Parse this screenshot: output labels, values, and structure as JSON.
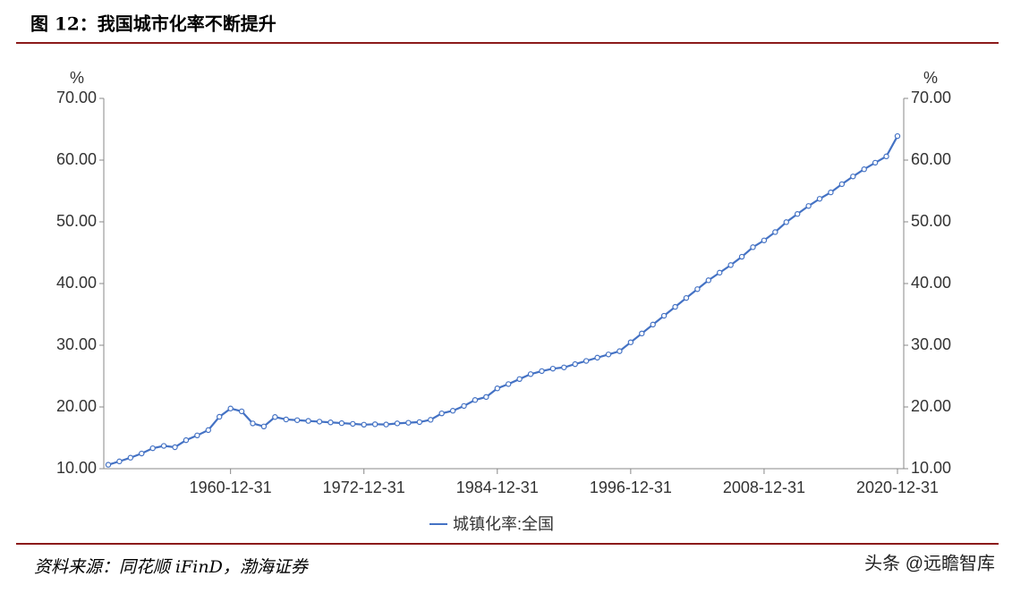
{
  "chart_data": {
    "type": "line",
    "title": "图 12：我国城市化率不断提升",
    "source": "资料来源：同花顺 iFinD，渤海证券",
    "watermark": "头条 @远瞻智库",
    "y_label": "%",
    "y2_label": "%",
    "x": [
      "1949-12-31",
      "1950-12-31",
      "1951-12-31",
      "1952-12-31",
      "1953-12-31",
      "1954-12-31",
      "1955-12-31",
      "1956-12-31",
      "1957-12-31",
      "1958-12-31",
      "1959-12-31",
      "1960-12-31",
      "1961-12-31",
      "1962-12-31",
      "1963-12-31",
      "1964-12-31",
      "1965-12-31",
      "1966-12-31",
      "1967-12-31",
      "1968-12-31",
      "1969-12-31",
      "1970-12-31",
      "1971-12-31",
      "1972-12-31",
      "1973-12-31",
      "1974-12-31",
      "1975-12-31",
      "1976-12-31",
      "1977-12-31",
      "1978-12-31",
      "1979-12-31",
      "1980-12-31",
      "1981-12-31",
      "1982-12-31",
      "1983-12-31",
      "1984-12-31",
      "1985-12-31",
      "1986-12-31",
      "1987-12-31",
      "1988-12-31",
      "1989-12-31",
      "1990-12-31",
      "1991-12-31",
      "1992-12-31",
      "1993-12-31",
      "1994-12-31",
      "1995-12-31",
      "1996-12-31",
      "1997-12-31",
      "1998-12-31",
      "1999-12-31",
      "2000-12-31",
      "2001-12-31",
      "2002-12-31",
      "2003-12-31",
      "2004-12-31",
      "2005-12-31",
      "2006-12-31",
      "2007-12-31",
      "2008-12-31",
      "2009-12-31",
      "2010-12-31",
      "2011-12-31",
      "2012-12-31",
      "2013-12-31",
      "2014-12-31",
      "2015-12-31",
      "2016-12-31",
      "2017-12-31",
      "2018-12-31",
      "2019-12-31",
      "2020-12-31"
    ],
    "series": [
      {
        "name": "城镇化率:全国",
        "color": "#4472c4",
        "values": [
          10.64,
          11.18,
          11.78,
          12.46,
          13.31,
          13.69,
          13.48,
          14.62,
          15.39,
          16.25,
          18.41,
          19.75,
          19.29,
          17.33,
          16.84,
          18.37,
          17.98,
          17.86,
          17.74,
          17.62,
          17.5,
          17.38,
          17.26,
          17.13,
          17.2,
          17.16,
          17.34,
          17.44,
          17.55,
          17.92,
          18.96,
          19.39,
          20.16,
          21.13,
          21.62,
          23.01,
          23.71,
          24.52,
          25.32,
          25.81,
          26.21,
          26.41,
          26.94,
          27.46,
          27.99,
          28.51,
          29.04,
          30.48,
          31.91,
          33.35,
          34.78,
          36.22,
          37.66,
          39.09,
          40.53,
          41.76,
          42.99,
          44.34,
          45.89,
          46.99,
          48.34,
          49.95,
          51.27,
          52.57,
          53.73,
          54.77,
          56.1,
          57.35,
          58.52,
          59.58,
          60.6,
          63.89
        ]
      }
    ],
    "xticks": [
      "1960-12-31",
      "1972-12-31",
      "1984-12-31",
      "1996-12-31",
      "2008-12-31",
      "2020-12-31"
    ],
    "ylim": [
      10,
      70
    ],
    "yticks": [
      {
        "value": 10,
        "label": "10.00"
      },
      {
        "value": 20,
        "label": "20.00"
      },
      {
        "value": 30,
        "label": "30.00"
      },
      {
        "value": 40,
        "label": "40.00"
      },
      {
        "value": 50,
        "label": "50.00"
      },
      {
        "value": 60,
        "label": "60.00"
      },
      {
        "value": 70,
        "label": "70.00"
      }
    ],
    "y2lim": [
      10,
      70
    ],
    "y2ticks": [
      {
        "value": 10,
        "label": "10.00"
      },
      {
        "value": 20,
        "label": "20.00"
      },
      {
        "value": 30,
        "label": "30.00"
      },
      {
        "value": 40,
        "label": "40.00"
      },
      {
        "value": 50,
        "label": "50.00"
      },
      {
        "value": 60,
        "label": "60.00"
      },
      {
        "value": 70,
        "label": "70.00"
      }
    ],
    "legend": "bottom"
  }
}
